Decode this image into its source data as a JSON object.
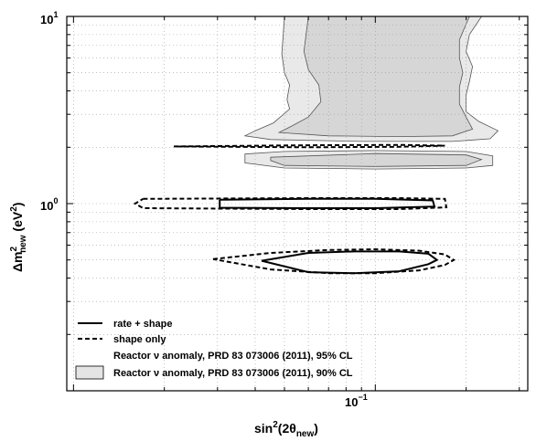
{
  "chart_data": {
    "type": "line",
    "x_scale": "log",
    "y_scale": "log",
    "xlim": [
      0.0095,
      0.32
    ],
    "ylim": [
      0.1,
      10
    ],
    "grid": true,
    "legend_placement": "bottom-left",
    "x_label": {
      "pre": "sin",
      "sup": "2",
      "mid": "(2θ",
      "sub": "new",
      "post": ")"
    },
    "y_label": {
      "pre": "Δm",
      "sup": "2",
      "sub": "new",
      "post": " (eV",
      "sup2": "2",
      "end": ")"
    },
    "x_ticks": [
      {
        "value": 0.1,
        "base": "10",
        "exp": "−1"
      }
    ],
    "y_ticks": [
      {
        "value": 1,
        "base": "10",
        "exp": "0"
      },
      {
        "value": 10,
        "base": "10",
        "exp": "1"
      }
    ],
    "colors": {
      "fill_95": "#e9e9e9",
      "fill_90": "#d6d6d6",
      "stroke": "#000000"
    },
    "series": [
      {
        "name": "rate + shape",
        "style": "solid",
        "contours": [
          [
            [
              0.0305,
              1.05
            ],
            [
              0.06,
              1.06
            ],
            [
              0.1,
              1.06
            ],
            [
              0.155,
              1.04
            ],
            [
              0.157,
              0.965
            ],
            [
              0.1,
              0.945
            ],
            [
              0.06,
              0.945
            ],
            [
              0.0305,
              0.95
            ],
            [
              0.0305,
              1.05
            ]
          ],
          [
            [
              0.042,
              0.495
            ],
            [
              0.06,
              0.545
            ],
            [
              0.085,
              0.555
            ],
            [
              0.12,
              0.555
            ],
            [
              0.15,
              0.54
            ],
            [
              0.16,
              0.5
            ],
            [
              0.15,
              0.475
            ],
            [
              0.12,
              0.435
            ],
            [
              0.085,
              0.425
            ],
            [
              0.06,
              0.43
            ],
            [
              0.042,
              0.495
            ]
          ]
        ]
      },
      {
        "name": "shape only",
        "style": "dashed",
        "contours": [
          [
            [
              0.017,
              1.06
            ],
            [
              0.06,
              1.07
            ],
            [
              0.12,
              1.07
            ],
            [
              0.17,
              1.06
            ],
            [
              0.172,
              0.955
            ],
            [
              0.12,
              0.935
            ],
            [
              0.06,
              0.935
            ],
            [
              0.017,
              0.945
            ],
            [
              0.016,
              1.0
            ],
            [
              0.017,
              1.06
            ]
          ],
          [
            [
              0.029,
              0.505
            ],
            [
              0.045,
              0.545
            ],
            [
              0.07,
              0.565
            ],
            [
              0.1,
              0.57
            ],
            [
              0.14,
              0.56
            ],
            [
              0.17,
              0.535
            ],
            [
              0.182,
              0.5
            ],
            [
              0.17,
              0.47
            ],
            [
              0.14,
              0.44
            ],
            [
              0.1,
              0.425
            ],
            [
              0.07,
              0.425
            ],
            [
              0.045,
              0.445
            ],
            [
              0.029,
              0.505
            ]
          ],
          [
            [
              0.0215,
              2.02
            ],
            [
              0.06,
              2.05
            ],
            [
              0.12,
              2.06
            ],
            [
              0.17,
              2.04
            ],
            [
              0.12,
              2.01
            ],
            [
              0.06,
              2.0
            ],
            [
              0.0215,
              2.02
            ]
          ]
        ]
      },
      {
        "name": "Reactor ν anomaly, PRD 83 073006 (2011), 95% CL",
        "style": "fill",
        "contours": [
          [
            [
              0.05,
              10
            ],
            [
              0.049,
              6.3
            ],
            [
              0.05,
              5.0
            ],
            [
              0.052,
              4.3
            ],
            [
              0.051,
              3.6
            ],
            [
              0.052,
              3.2
            ],
            [
              0.046,
              2.7
            ],
            [
              0.04,
              2.45
            ],
            [
              0.037,
              2.3
            ],
            [
              0.045,
              2.2
            ],
            [
              0.09,
              2.15
            ],
            [
              0.18,
              2.15
            ],
            [
              0.24,
              2.22
            ],
            [
              0.255,
              2.45
            ],
            [
              0.22,
              2.75
            ],
            [
              0.2,
              3.1
            ],
            [
              0.2,
              3.8
            ],
            [
              0.205,
              4.5
            ],
            [
              0.21,
              5.4
            ],
            [
              0.2,
              6.5
            ],
            [
              0.205,
              8.0
            ],
            [
              0.225,
              10
            ]
          ],
          [
            [
              0.037,
              1.84
            ],
            [
              0.05,
              1.9
            ],
            [
              0.1,
              1.92
            ],
            [
              0.2,
              1.9
            ],
            [
              0.245,
              1.8
            ],
            [
              0.245,
              1.6
            ],
            [
              0.2,
              1.55
            ],
            [
              0.1,
              1.53
            ],
            [
              0.05,
              1.55
            ],
            [
              0.037,
              1.65
            ],
            [
              0.037,
              1.84
            ]
          ]
        ]
      },
      {
        "name": "Reactor ν anomaly, PRD 83 073006 (2011), 90% CL",
        "style": "fill",
        "contours": [
          [
            [
              0.06,
              10
            ],
            [
              0.058,
              6.5
            ],
            [
              0.06,
              5.2
            ],
            [
              0.065,
              4.3
            ],
            [
              0.066,
              3.5
            ],
            [
              0.06,
              2.9
            ],
            [
              0.053,
              2.6
            ],
            [
              0.048,
              2.4
            ],
            [
              0.07,
              2.3
            ],
            [
              0.12,
              2.28
            ],
            [
              0.18,
              2.3
            ],
            [
              0.21,
              2.5
            ],
            [
              0.2,
              2.9
            ],
            [
              0.19,
              3.4
            ],
            [
              0.19,
              4.2
            ],
            [
              0.195,
              5.0
            ],
            [
              0.19,
              6.0
            ],
            [
              0.19,
              7.5
            ],
            [
              0.205,
              10
            ]
          ],
          [
            [
              0.045,
              1.77
            ],
            [
              0.1,
              1.85
            ],
            [
              0.2,
              1.82
            ],
            [
              0.225,
              1.72
            ],
            [
              0.2,
              1.6
            ],
            [
              0.1,
              1.58
            ],
            [
              0.05,
              1.6
            ],
            [
              0.045,
              1.7
            ],
            [
              0.045,
              1.77
            ]
          ]
        ]
      }
    ]
  }
}
